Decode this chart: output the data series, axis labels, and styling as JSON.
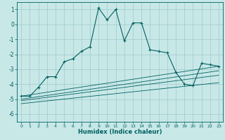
{
  "xlabel": "Humidex (Indice chaleur)",
  "ylabel": "",
  "background_color": "#c8e8e8",
  "grid_color": "#a0c8c8",
  "line_color": "#006060",
  "xlim": [
    -0.5,
    23.5
  ],
  "ylim": [
    -6.5,
    1.5
  ],
  "yticks": [
    1,
    0,
    -1,
    -2,
    -3,
    -4,
    -5,
    -6
  ],
  "xticks": [
    0,
    1,
    2,
    3,
    4,
    5,
    6,
    7,
    8,
    9,
    10,
    11,
    12,
    13,
    14,
    15,
    16,
    17,
    18,
    19,
    20,
    21,
    22,
    23
  ],
  "main_x": [
    0,
    1,
    2,
    3,
    4,
    5,
    6,
    7,
    8,
    9,
    10,
    11,
    12,
    13,
    14,
    15,
    16,
    17,
    18,
    19,
    20,
    21,
    22,
    23
  ],
  "main_y": [
    -4.8,
    -4.8,
    -4.2,
    -3.5,
    -3.5,
    -2.5,
    -2.3,
    -1.8,
    -1.5,
    1.1,
    0.3,
    1.0,
    -1.1,
    0.1,
    0.1,
    -1.7,
    -1.8,
    -1.9,
    -3.2,
    -4.0,
    -4.1,
    -2.6,
    -2.7,
    -2.8
  ],
  "line2_x": [
    0,
    23
  ],
  "line2_y": [
    -4.8,
    -2.8
  ],
  "line3_x": [
    0,
    23
  ],
  "line3_y": [
    -5.0,
    -3.1
  ],
  "line4_x": [
    0,
    23
  ],
  "line4_y": [
    -5.1,
    -3.4
  ],
  "line5_x": [
    0,
    23
  ],
  "line5_y": [
    -5.3,
    -3.9
  ]
}
